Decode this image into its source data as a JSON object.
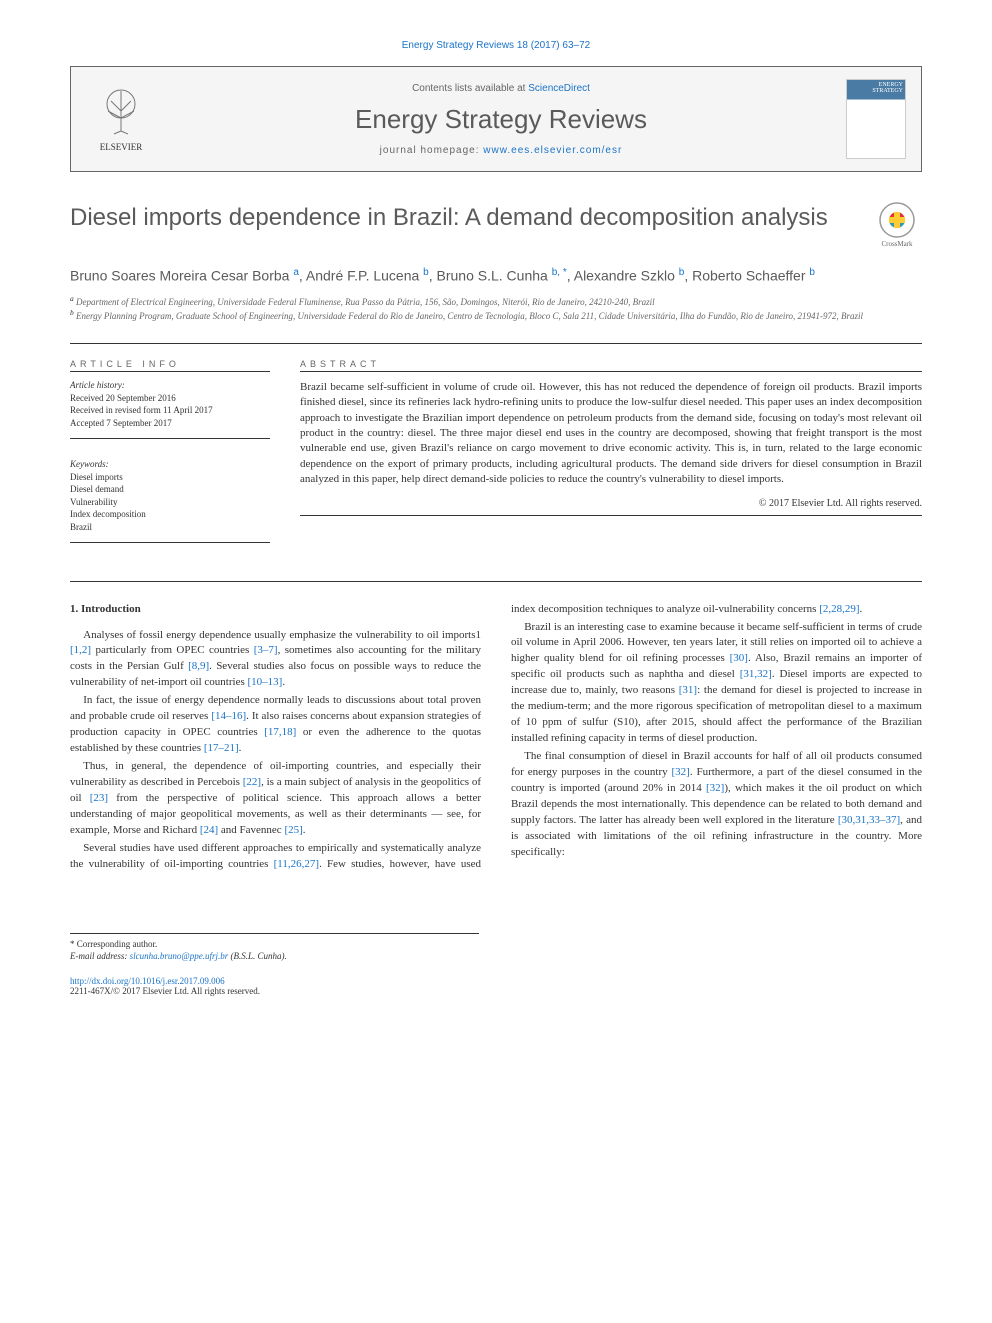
{
  "citation": "Energy Strategy Reviews 18 (2017) 63–72",
  "header": {
    "publisher": "ELSEVIER",
    "contents_prefix": "Contents lists available at ",
    "contents_link": "ScienceDirect",
    "journal": "Energy Strategy Reviews",
    "homepage_prefix": "journal homepage: ",
    "homepage_url": "www.ees.elsevier.com/esr",
    "cover_label": "ENERGY STRATEGY"
  },
  "title": "Diesel imports dependence in Brazil: A demand decomposition analysis",
  "crossmark": "CrossMark",
  "authors_html": "Bruno Soares Moreira Cesar Borba <sup>a</sup>, André F.P. Lucena <sup>b</sup>, Bruno S.L. Cunha <sup>b, *</sup>, Alexandre Szklo <sup>b</sup>, Roberto Schaeffer <sup>b</sup>",
  "affiliations": {
    "a": "Department of Electrical Engineering, Universidade Federal Fluminense, Rua Passo da Pátria, 156, São, Domingos, Niterói, Rio de Janeiro, 24210-240, Brazil",
    "b": "Energy Planning Program, Graduate School of Engineering, Universidade Federal do Rio de Janeiro, Centro de Tecnologia, Bloco C, Sala 211, Cidade Universitária, Ilha do Fundão, Rio de Janeiro, 21941-972, Brazil"
  },
  "info": {
    "heading": "ARTICLE INFO",
    "history_label": "Article history:",
    "received": "Received 20 September 2016",
    "revised": "Received in revised form 11 April 2017",
    "accepted": "Accepted 7 September 2017",
    "keywords_label": "Keywords:",
    "keywords": [
      "Diesel imports",
      "Diesel demand",
      "Vulnerability",
      "Index decomposition",
      "Brazil"
    ]
  },
  "abstract": {
    "heading": "ABSTRACT",
    "text": "Brazil became self-sufficient in volume of crude oil. However, this has not reduced the dependence of foreign oil products. Brazil imports finished diesel, since its refineries lack hydro-refining units to produce the low-sulfur diesel needed. This paper uses an index decomposition approach to investigate the Brazilian import dependence on petroleum products from the demand side, focusing on today's most relevant oil product in the country: diesel. The three major diesel end uses in the country are decomposed, showing that freight transport is the most vulnerable end use, given Brazil's reliance on cargo movement to drive economic activity. This is, in turn, related to the large economic dependence on the export of primary products, including agricultural products. The demand side drivers for diesel consumption in Brazil analyzed in this paper, help direct demand-side policies to reduce the country's vulnerability to diesel imports.",
    "copyright": "© 2017 Elsevier Ltd. All rights reserved."
  },
  "body": {
    "section_num": "1.",
    "section_title": "Introduction",
    "paragraphs": [
      "Analyses of fossil energy dependence usually emphasize the vulnerability to oil imports1 <a>[1,2]</a> particularly from OPEC countries <a>[3–7]</a>, sometimes also accounting for the military costs in the Persian Gulf <a>[8,9]</a>. Several studies also focus on possible ways to reduce the vulnerability of net-import oil countries <a>[10–13]</a>.",
      "In fact, the issue of energy dependence normally leads to discussions about total proven and probable crude oil reserves <a>[14–16]</a>. It also raises concerns about expansion strategies of production capacity in OPEC countries <a>[17,18]</a> or even the adherence to the quotas established by these countries <a>[17–21]</a>.",
      "Thus, in general, the dependence of oil-importing countries, and especially their vulnerability as described in Percebois <a>[22]</a>, is a main subject of analysis in the geopolitics of oil <a>[23]</a> from the perspective of political science. This approach allows a better understanding of major geopolitical movements, as well as their determinants — see, for example, Morse and Richard <a>[24]</a> and Favennec <a>[25]</a>.",
      "Several studies have used different approaches to empirically and systematically analyze the vulnerability of oil-importing countries <a>[11,26,27]</a>. Few studies, however, have used index decomposition techniques to analyze oil-vulnerability concerns <a>[2,28,29]</a>.",
      "Brazil is an interesting case to examine because it became self-sufficient in terms of crude oil volume in April 2006. However, ten years later, it still relies on imported oil to achieve a higher quality blend for oil refining processes <a>[30]</a>. Also, Brazil remains an importer of specific oil products such as naphtha and diesel <a>[31,32]</a>. Diesel imports are expected to increase due to, mainly, two reasons <a>[31]</a>: the demand for diesel is projected to increase in the medium-term; and the more rigorous specification of metropolitan diesel to a maximum of 10 ppm of sulfur (S10), after 2015, should affect the performance of the Brazilian installed refining capacity in terms of diesel production.",
      "The final consumption of diesel in Brazil accounts for half of all oil products consumed for energy purposes in the country <a>[32]</a>. Furthermore, a part of the diesel consumed in the country is imported (around 20% in 2014 <a>[32]</a>), which makes it the oil product on which Brazil depends the most internationally. This dependence can be related to both demand and supply factors. The latter has already been well explored in the literature <a>[30,31,33–37]</a>, and is associated with limitations of the oil refining infrastructure in the country. More specifically:"
    ]
  },
  "footer": {
    "corresponding": "* Corresponding author.",
    "email_label": "E-mail address: ",
    "email": "slcunha.bruno@ppe.ufrj.br",
    "email_suffix": " (B.S.L. Cunha).",
    "doi": "http://dx.doi.org/10.1016/j.esr.2017.09.006",
    "issn": "2211-467X/© 2017 Elsevier Ltd. All rights reserved."
  }
}
